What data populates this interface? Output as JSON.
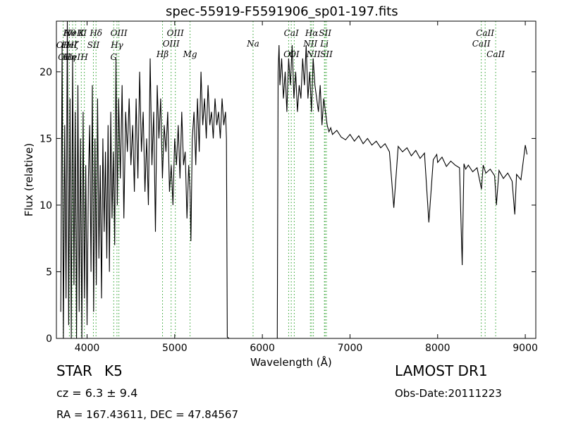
{
  "chart_data": {
    "type": "line",
    "title": "spec-55919-F5591906_sp01-197.fits",
    "xlabel": "Wavelength (Å)",
    "ylabel": "Flux (relative)",
    "xlim": [
      3650,
      9120
    ],
    "ylim": [
      0,
      23.8
    ],
    "xticks": [
      4000,
      5000,
      6000,
      7000,
      8000,
      9000
    ],
    "yticks": [
      0,
      5,
      10,
      15,
      20
    ],
    "grid": false,
    "line_color": "#000000",
    "marker_color": "#2ca02c",
    "series": [
      {
        "x": [
          3700,
          3715,
          3730,
          3745,
          3760,
          3775,
          3790,
          3805,
          3820,
          3835,
          3850,
          3865,
          3880,
          3895,
          3910,
          3925,
          3940,
          3955,
          3970,
          3985,
          4000,
          4015,
          4030,
          4045,
          4060,
          4075,
          4090,
          4105,
          4120,
          4135,
          4150,
          4165,
          4180,
          4195,
          4210,
          4225,
          4240,
          4255,
          4270,
          4285,
          4300,
          4315,
          4330,
          4345,
          4360,
          4380,
          4400,
          4420,
          4440,
          4460,
          4480,
          4500,
          4520,
          4540,
          4560,
          4580,
          4600,
          4620,
          4640,
          4660,
          4680,
          4700,
          4720,
          4740,
          4760,
          4780,
          4800,
          4820,
          4840,
          4860,
          4880,
          4900,
          4920,
          4940,
          4960,
          4980,
          5000,
          5020,
          5040,
          5060,
          5080,
          5100,
          5120,
          5140,
          5160,
          5175,
          5185,
          5200,
          5220,
          5240,
          5260,
          5280,
          5300,
          5320,
          5340,
          5360,
          5380,
          5400,
          5420,
          5440,
          5460,
          5480,
          5500,
          5520,
          5540,
          5560,
          5580,
          5590,
          5600,
          5620,
          5700,
          5800,
          5900,
          6000,
          6100,
          6170,
          6180,
          6190,
          6200,
          6220,
          6240,
          6260,
          6280,
          6300,
          6320,
          6340,
          6360,
          6380,
          6400,
          6420,
          6440,
          6460,
          6480,
          6500,
          6520,
          6540,
          6560,
          6580,
          6600,
          6620,
          6640,
          6660,
          6680,
          6700,
          6720,
          6740,
          6760,
          6780,
          6800,
          6850,
          6900,
          6950,
          7000,
          7050,
          7100,
          7150,
          7200,
          7250,
          7300,
          7350,
          7400,
          7450,
          7500,
          7550,
          7600,
          7650,
          7700,
          7750,
          7800,
          7850,
          7900,
          7950,
          7990,
          8000,
          8050,
          8100,
          8150,
          8200,
          8250,
          8280,
          8300,
          8320,
          8350,
          8400,
          8450,
          8500,
          8520,
          8550,
          8600,
          8650,
          8670,
          8700,
          8750,
          8800,
          8850,
          8880,
          8900,
          8950,
          9000,
          9020
        ],
        "y": [
          2,
          22,
          0,
          16,
          3,
          24,
          1,
          18,
          0,
          21,
          4,
          17,
          0,
          19,
          2,
          15,
          0,
          17,
          3,
          13,
          1,
          12,
          16,
          5,
          19,
          2,
          15,
          4,
          18,
          6,
          13,
          3,
          15,
          8,
          14,
          6,
          16,
          5,
          17,
          9,
          14,
          7,
          21,
          10,
          18,
          12,
          19,
          9,
          17,
          14,
          18,
          13,
          16,
          11,
          18,
          12,
          20,
          14,
          17,
          11,
          15,
          10,
          21,
          13,
          17,
          8,
          19,
          15,
          18,
          12,
          16,
          14,
          17,
          11,
          13,
          10,
          15,
          13,
          16,
          12,
          17,
          13,
          14,
          9,
          13,
          11,
          7.3,
          15,
          17,
          13,
          18,
          14,
          20,
          16,
          18,
          15,
          19,
          16,
          17,
          15,
          18,
          16,
          17,
          15,
          18,
          16,
          17,
          15,
          0.1,
          0,
          0,
          0,
          0,
          0,
          0,
          0,
          20,
          22,
          19,
          21,
          18,
          20,
          17,
          21,
          19,
          22,
          18,
          20,
          17,
          19,
          18,
          21,
          19,
          22,
          18,
          20,
          17,
          21,
          19,
          18,
          17,
          19,
          16,
          18,
          17,
          16,
          15.5,
          15.8,
          15.3,
          15.6,
          15.1,
          14.9,
          15.3,
          14.8,
          15.2,
          14.6,
          15,
          14.5,
          14.8,
          14.3,
          14.6,
          14,
          9.8,
          14.4,
          14,
          14.3,
          13.7,
          14.1,
          13.5,
          13.9,
          8.7,
          13.4,
          13.8,
          13.2,
          13.6,
          12.9,
          13.3,
          13,
          12.8,
          5.5,
          13.1,
          12.7,
          13,
          12.5,
          12.8,
          11.2,
          13,
          12.4,
          12.7,
          12.2,
          10,
          12.6,
          12,
          12.4,
          11.8,
          9.3,
          12.3,
          11.9,
          14.5,
          13.8
        ]
      }
    ],
    "lines": [
      {
        "x": 3727,
        "labels": [
          "OII",
          "OI"
        ],
        "ys": [
          21.8,
          20.9
        ]
      },
      {
        "x": 3798,
        "labels": [
          "Hθ",
          "HeI",
          "Hη"
        ],
        "ys": [
          22.7,
          21.8,
          20.9
        ]
      },
      {
        "x": 3835,
        "labels": [
          "Hζ",
          "HeI"
        ],
        "ys": [
          21.8,
          20.9
        ]
      },
      {
        "x": 3869,
        "labels": [
          "NeIII"
        ],
        "ys": [
          22.7
        ]
      },
      {
        "x": 3934,
        "labels": [
          "K"
        ],
        "ys": [
          22.7
        ]
      },
      {
        "x": 3969,
        "labels": [
          "H"
        ],
        "ys": [
          20.9
        ]
      },
      {
        "x": 4072,
        "labels": [
          "SII"
        ],
        "ys": [
          21.8
        ]
      },
      {
        "x": 4102,
        "labels": [
          "Hδ"
        ],
        "ys": [
          22.7
        ]
      },
      {
        "x": 4304,
        "labels": [
          "G"
        ],
        "ys": [
          20.9
        ]
      },
      {
        "x": 4341,
        "labels": [
          "Hγ"
        ],
        "ys": [
          21.8
        ]
      },
      {
        "x": 4363,
        "labels": [
          "OIII"
        ],
        "ys": [
          22.7
        ]
      },
      {
        "x": 4861,
        "labels": [
          "Hβ"
        ],
        "ys": [
          21.1
        ]
      },
      {
        "x": 4959,
        "labels": [
          "OIII"
        ],
        "ys": [
          21.9
        ]
      },
      {
        "x": 5007,
        "labels": [
          "OIII"
        ],
        "ys": [
          22.7
        ]
      },
      {
        "x": 5175,
        "labels": [
          "Mg"
        ],
        "ys": [
          21.1
        ]
      },
      {
        "x": 5894,
        "labels": [
          "Na"
        ],
        "ys": [
          21.9
        ]
      },
      {
        "x": 6300,
        "labels": [
          "OI"
        ],
        "ys": [
          21.1
        ]
      },
      {
        "x": 6364,
        "labels": [
          "OI"
        ],
        "ys": [
          21.1
        ]
      },
      {
        "x": 6548,
        "labels": [
          "NII"
        ],
        "ys": [
          21.9
        ]
      },
      {
        "x": 6563,
        "labels": [
          "Hα"
        ],
        "ys": [
          22.7
        ]
      },
      {
        "x": 6583,
        "labels": [
          "NII"
        ],
        "ys": [
          21.1
        ]
      },
      {
        "x": 6716,
        "labels": [
          "SII"
        ],
        "ys": [
          22.7
        ]
      },
      {
        "x": 6731,
        "labels": [
          "SII"
        ],
        "ys": [
          21.1
        ]
      },
      {
        "x": 6708,
        "labels": [
          "Li"
        ],
        "ys": [
          21.9
        ]
      },
      {
        "x": 6330,
        "labels": [
          "CaI"
        ],
        "ys": [
          22.7
        ]
      },
      {
        "x": 8498,
        "labels": [
          "CaII"
        ],
        "ys": [
          21.9
        ]
      },
      {
        "x": 8542,
        "labels": [
          "CaII"
        ],
        "ys": [
          22.7
        ]
      },
      {
        "x": 8662,
        "labels": [
          "CaII"
        ],
        "ys": [
          21.1
        ]
      }
    ]
  },
  "info": {
    "class": "STAR",
    "subclass": "K5",
    "cz": "cz = 6.3 ± 9.4",
    "radec": "RA = 167.43611, DEC = 47.84567",
    "survey": "LAMOST DR1",
    "obsdate": "Obs-Date:20111223"
  }
}
